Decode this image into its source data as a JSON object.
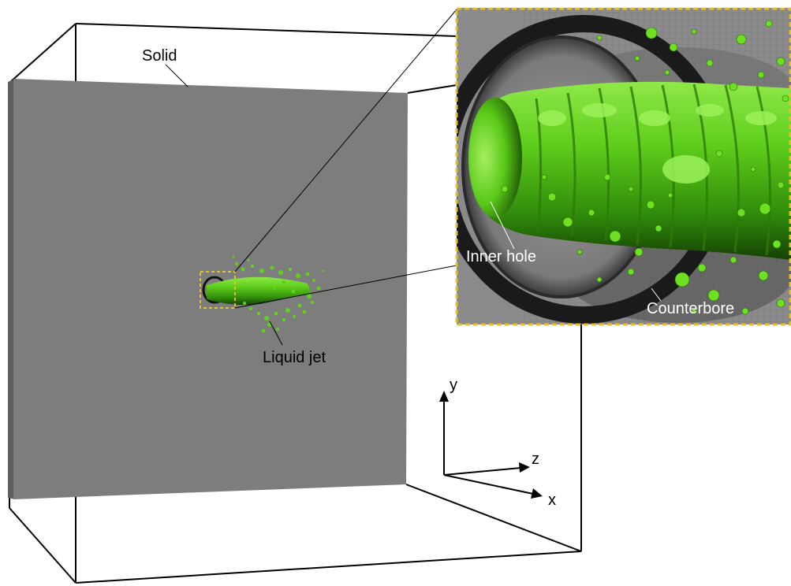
{
  "labels": {
    "solid": "Solid",
    "liquid_jet": "Liquid jet",
    "inner_hole": "Inner hole",
    "counterbore": "Counterbore"
  },
  "axes": {
    "y": "y",
    "z": "z",
    "x": "x"
  },
  "colors": {
    "solid_face": "#7d7d7d",
    "solid_edge": "#5e5e5e",
    "jet_green": "#5fd11c",
    "jet_dark": "#1c4a06",
    "inset_border": "#e3c030",
    "inset_background": "#8a8a8a",
    "counterbore_ring": "#1a1a1a"
  }
}
